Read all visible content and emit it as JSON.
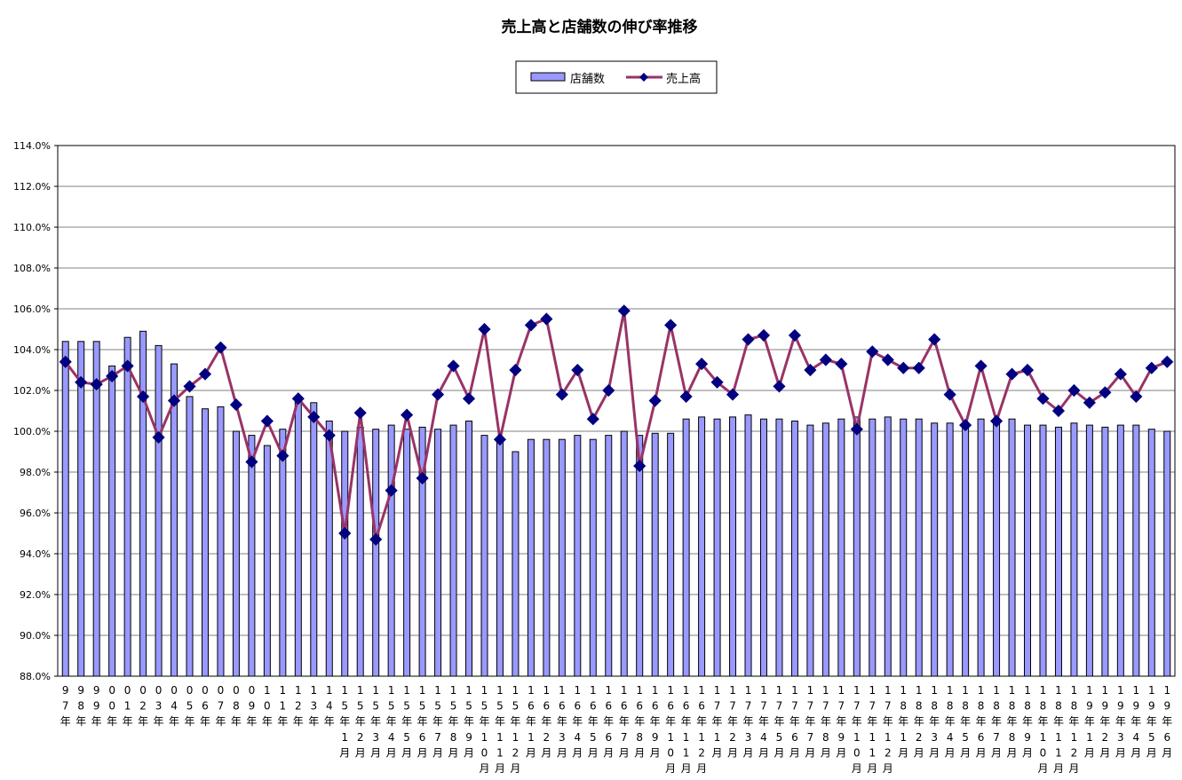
{
  "chart_data": {
    "type": "bar",
    "title": "売上高と店舗数の伸び率推移",
    "legend": {
      "placement": "top-center"
    },
    "ylim": [
      88.0,
      114.0
    ],
    "y_ticks": [
      "88.0%",
      "90.0%",
      "92.0%",
      "94.0%",
      "96.0%",
      "98.0%",
      "100.0%",
      "102.0%",
      "104.0%",
      "106.0%",
      "108.0%",
      "110.0%",
      "112.0%",
      "114.0%"
    ],
    "categories": [
      "97年",
      "98年",
      "99年",
      "00年",
      "01年",
      "02年",
      "03年",
      "04年",
      "05年",
      "06年",
      "07年",
      "08年",
      "09年",
      "10年",
      "11年",
      "12年",
      "13年",
      "14年",
      "15年1月",
      "15年2月",
      "15年3月",
      "15年4月",
      "15年5月",
      "15年6月",
      "15年7月",
      "15年8月",
      "15年9月",
      "15年10月",
      "15年11月",
      "15年12月",
      "16年1月",
      "16年2月",
      "16年3月",
      "16年4月",
      "16年5月",
      "16年6月",
      "16年7月",
      "16年8月",
      "16年9月",
      "16年10月",
      "16年11月",
      "16年12月",
      "17年1月",
      "17年2月",
      "17年3月",
      "17年4月",
      "17年5月",
      "17年6月",
      "17年7月",
      "17年8月",
      "17年9月",
      "17年10月",
      "17年11月",
      "17年12月",
      "18年1月",
      "18年2月",
      "18年3月",
      "18年4月",
      "18年5月",
      "18年6月",
      "18年7月",
      "18年8月",
      "18年9月",
      "18年10月",
      "18年11月",
      "18年12月",
      "19年1月",
      "19年2月",
      "19年3月",
      "19年4月",
      "19年5月",
      "19年6月"
    ],
    "x_labels": [
      [
        "9",
        "7",
        "年"
      ],
      [
        "9",
        "8",
        "年"
      ],
      [
        "9",
        "9",
        "年"
      ],
      [
        "0",
        "0",
        "年"
      ],
      [
        "0",
        "1",
        "年"
      ],
      [
        "0",
        "2",
        "年"
      ],
      [
        "0",
        "3",
        "年"
      ],
      [
        "0",
        "4",
        "年"
      ],
      [
        "0",
        "5",
        "年"
      ],
      [
        "0",
        "6",
        "年"
      ],
      [
        "0",
        "7",
        "年"
      ],
      [
        "0",
        "8",
        "年"
      ],
      [
        "0",
        "9",
        "年"
      ],
      [
        "1",
        "0",
        "年"
      ],
      [
        "1",
        "1",
        "年"
      ],
      [
        "1",
        "2",
        "年"
      ],
      [
        "1",
        "3",
        "年"
      ],
      [
        "1",
        "4",
        "年"
      ],
      [
        "1",
        "5",
        "年",
        "1",
        "月"
      ],
      [
        "1",
        "5",
        "年",
        "2",
        "月"
      ],
      [
        "1",
        "5",
        "年",
        "3",
        "月"
      ],
      [
        "1",
        "5",
        "年",
        "4",
        "月"
      ],
      [
        "1",
        "5",
        "年",
        "5",
        "月"
      ],
      [
        "1",
        "5",
        "年",
        "6",
        "月"
      ],
      [
        "1",
        "5",
        "年",
        "7",
        "月"
      ],
      [
        "1",
        "5",
        "年",
        "8",
        "月"
      ],
      [
        "1",
        "5",
        "年",
        "9",
        "月"
      ],
      [
        "1",
        "5",
        "年",
        "1",
        "0",
        "月"
      ],
      [
        "1",
        "5",
        "年",
        "1",
        "1",
        "月"
      ],
      [
        "1",
        "5",
        "年",
        "1",
        "2",
        "月"
      ],
      [
        "1",
        "6",
        "年",
        "1",
        "月"
      ],
      [
        "1",
        "6",
        "年",
        "2",
        "月"
      ],
      [
        "1",
        "6",
        "年",
        "3",
        "月"
      ],
      [
        "1",
        "6",
        "年",
        "4",
        "月"
      ],
      [
        "1",
        "6",
        "年",
        "5",
        "月"
      ],
      [
        "1",
        "6",
        "年",
        "6",
        "月"
      ],
      [
        "1",
        "6",
        "年",
        "7",
        "月"
      ],
      [
        "1",
        "6",
        "年",
        "8",
        "月"
      ],
      [
        "1",
        "6",
        "年",
        "9",
        "月"
      ],
      [
        "1",
        "6",
        "年",
        "1",
        "0",
        "月"
      ],
      [
        "1",
        "6",
        "年",
        "1",
        "1",
        "月"
      ],
      [
        "1",
        "6",
        "年",
        "1",
        "2",
        "月"
      ],
      [
        "1",
        "7",
        "年",
        "1",
        "月"
      ],
      [
        "1",
        "7",
        "年",
        "2",
        "月"
      ],
      [
        "1",
        "7",
        "年",
        "3",
        "月"
      ],
      [
        "1",
        "7",
        "年",
        "4",
        "月"
      ],
      [
        "1",
        "7",
        "年",
        "5",
        "月"
      ],
      [
        "1",
        "7",
        "年",
        "6",
        "月"
      ],
      [
        "1",
        "7",
        "年",
        "7",
        "月"
      ],
      [
        "1",
        "7",
        "年",
        "8",
        "月"
      ],
      [
        "1",
        "7",
        "年",
        "9",
        "月"
      ],
      [
        "1",
        "7",
        "年",
        "1",
        "0",
        "月"
      ],
      [
        "1",
        "7",
        "年",
        "1",
        "1",
        "月"
      ],
      [
        "1",
        "7",
        "年",
        "1",
        "2",
        "月"
      ],
      [
        "1",
        "8",
        "年",
        "1",
        "月"
      ],
      [
        "1",
        "8",
        "年",
        "2",
        "月"
      ],
      [
        "1",
        "8",
        "年",
        "3",
        "月"
      ],
      [
        "1",
        "8",
        "年",
        "4",
        "月"
      ],
      [
        "1",
        "8",
        "年",
        "5",
        "月"
      ],
      [
        "1",
        "8",
        "年",
        "6",
        "月"
      ],
      [
        "1",
        "8",
        "年",
        "7",
        "月"
      ],
      [
        "1",
        "8",
        "年",
        "8",
        "月"
      ],
      [
        "1",
        "8",
        "年",
        "9",
        "月"
      ],
      [
        "1",
        "8",
        "年",
        "1",
        "0",
        "月"
      ],
      [
        "1",
        "8",
        "年",
        "1",
        "1",
        "月"
      ],
      [
        "1",
        "8",
        "年",
        "1",
        "2",
        "月"
      ],
      [
        "1",
        "9",
        "年",
        "1",
        "月"
      ],
      [
        "1",
        "9",
        "年",
        "2",
        "月"
      ],
      [
        "1",
        "9",
        "年",
        "3",
        "月"
      ],
      [
        "1",
        "9",
        "年",
        "4",
        "月"
      ],
      [
        "1",
        "9",
        "年",
        "5",
        "月"
      ],
      [
        "1",
        "9",
        "年",
        "6",
        "月"
      ]
    ],
    "series": [
      {
        "name": "店舗数",
        "kind": "bar",
        "color": "#9999ff",
        "values": [
          104.4,
          104.4,
          104.4,
          103.2,
          104.6,
          104.9,
          104.2,
          103.3,
          101.7,
          101.1,
          101.2,
          100.0,
          99.8,
          99.3,
          100.1,
          101.6,
          101.4,
          100.5,
          100.0,
          100.2,
          100.1,
          100.3,
          100.1,
          100.2,
          100.1,
          100.3,
          100.5,
          99.8,
          99.7,
          99.0,
          99.6,
          99.6,
          99.6,
          99.8,
          99.6,
          99.8,
          100.0,
          99.8,
          99.9,
          99.9,
          100.6,
          100.7,
          100.6,
          100.7,
          100.8,
          100.6,
          100.6,
          100.5,
          100.3,
          100.4,
          100.6,
          100.7,
          100.6,
          100.7,
          100.6,
          100.6,
          100.4,
          100.4,
          100.3,
          100.6,
          100.6,
          100.6,
          100.3,
          100.3,
          100.2,
          100.4,
          100.3,
          100.2,
          100.3,
          100.3,
          100.1,
          100.0
        ]
      },
      {
        "name": "売上高",
        "kind": "line",
        "color": "#993366",
        "marker_color": "#000080",
        "values": [
          103.4,
          102.4,
          102.3,
          102.7,
          103.2,
          101.7,
          99.7,
          101.5,
          102.2,
          102.8,
          104.1,
          101.3,
          98.5,
          100.5,
          98.8,
          101.6,
          100.7,
          99.8,
          95.0,
          100.9,
          94.7,
          97.1,
          100.8,
          97.7,
          101.8,
          103.2,
          101.6,
          105.0,
          99.6,
          103.0,
          105.2,
          105.5,
          101.8,
          103.0,
          100.6,
          102.0,
          105.9,
          98.3,
          101.5,
          105.2,
          101.7,
          103.3,
          102.4,
          101.8,
          104.5,
          104.7,
          102.2,
          104.7,
          103.0,
          103.5,
          103.3,
          100.1,
          103.9,
          103.5,
          103.1,
          103.1,
          104.5,
          101.8,
          100.3,
          103.2,
          100.5,
          102.8,
          103.0,
          101.6,
          101.0,
          102.0,
          101.4,
          101.9,
          102.8,
          101.7,
          103.1,
          103.4
        ]
      }
    ]
  }
}
